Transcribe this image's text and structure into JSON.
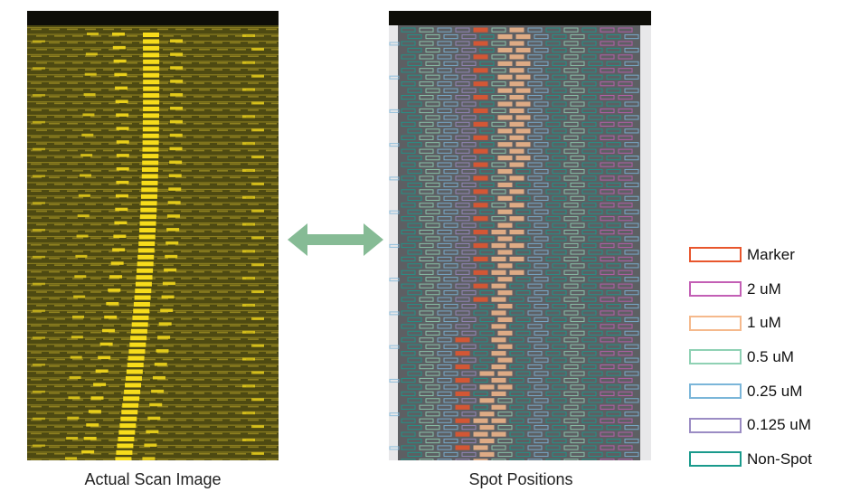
{
  "captions": {
    "scan": "Actual Scan Image",
    "spots": "Spot Positions"
  },
  "legend": [
    {
      "label": "Marker",
      "color": "#e8562d"
    },
    {
      "label": "2 uM",
      "color": "#c35fb5"
    },
    {
      "label": "1 uM",
      "color": "#f5b98c"
    },
    {
      "label": "0.5 uM",
      "color": "#8fd1b4"
    },
    {
      "label": "0.25 uM",
      "color": "#7bb6d9"
    },
    {
      "label": "0.125 uM",
      "color": "#9b8cc4"
    },
    {
      "label": "Non-Spot",
      "color": "#1a9a8c"
    }
  ],
  "colors": {
    "scan_spot": "#f7dc1b",
    "scan_line": "#b9a52a",
    "arrow": "#86bb95"
  }
}
